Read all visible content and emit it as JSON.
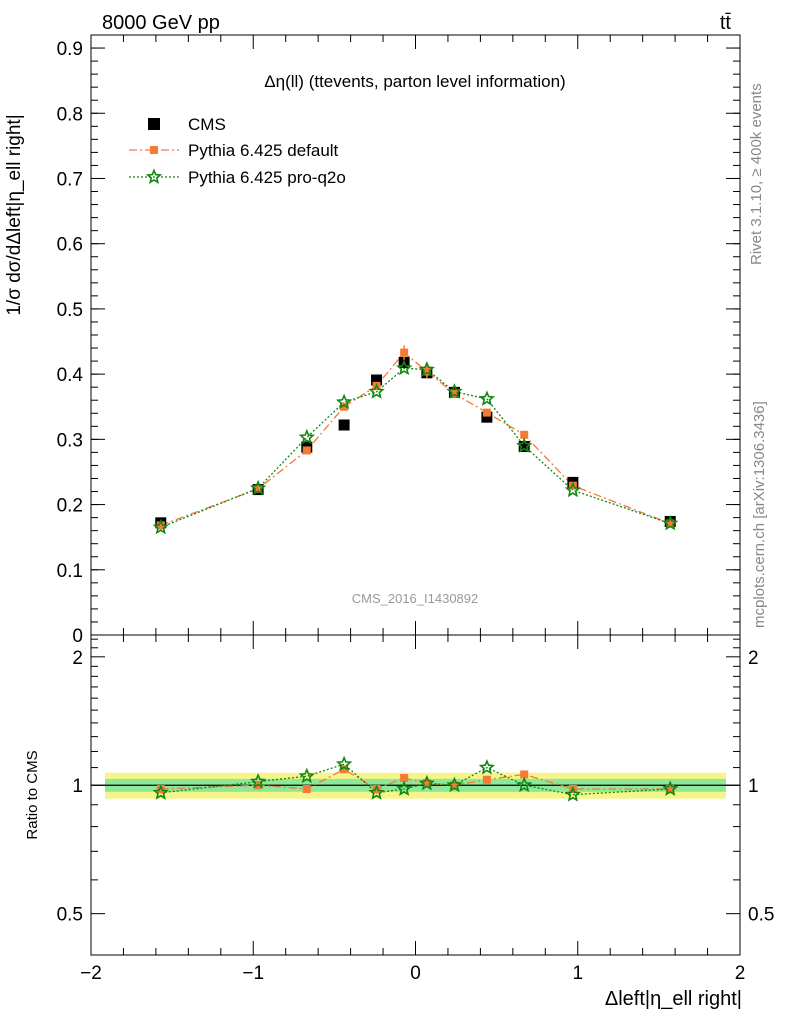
{
  "header": {
    "energy_label": "8000 GeV pp",
    "process_label": "tt̄"
  },
  "side_labels": {
    "rivet": "Rivet 3.1.10, ≥ 400k events",
    "mcplots": "mcplots.cern.ch [arXiv:1306.3436]"
  },
  "chart_data": [
    {
      "type": "scatter",
      "panel": "main",
      "title": "Δη(ll) (ttevents, parton level information)",
      "watermark": "CMS_2016_I1430892",
      "ylabel": "1/σ dσ/dΔleft|η_ell right|",
      "xlim": [
        -2,
        2
      ],
      "ylim": [
        0,
        0.92
      ],
      "yticks": [
        0,
        0.1,
        0.2,
        0.3,
        0.4,
        0.5,
        0.6,
        0.7,
        0.8,
        0.9
      ],
      "legend_position": "top-left",
      "x": [
        -1.57,
        -0.97,
        -0.67,
        -0.44,
        -0.24,
        -0.07,
        0.07,
        0.24,
        0.44,
        0.67,
        0.97,
        1.57
      ],
      "series": [
        {
          "name": "CMS",
          "color": "#000000",
          "marker": "square",
          "values": [
            0.172,
            0.223,
            0.288,
            0.322,
            0.391,
            0.418,
            0.402,
            0.372,
            0.334,
            0.289,
            0.234,
            0.174
          ]
        },
        {
          "name": "Pythia 6.425 default",
          "color": "#f47a35",
          "marker": "square-small",
          "line": "dashdot",
          "values": [
            0.168,
            0.224,
            0.283,
            0.35,
            0.382,
            0.433,
            0.404,
            0.37,
            0.341,
            0.307,
            0.229,
            0.171
          ],
          "errors": [
            0.003,
            0.004,
            0.005,
            0.006,
            0.006,
            0.011,
            0.01,
            0.005,
            0.006,
            0.006,
            0.004,
            0.003
          ]
        },
        {
          "name": "Pythia 6.425 pro-q2o",
          "color": "#118811",
          "marker": "star",
          "line": "dotted",
          "values": [
            0.165,
            0.225,
            0.303,
            0.357,
            0.373,
            0.409,
            0.407,
            0.373,
            0.362,
            0.29,
            0.222,
            0.171
          ]
        }
      ]
    },
    {
      "type": "line",
      "panel": "ratio",
      "ylabel": "Ratio to CMS",
      "xlabel": "Δleft|η_ell right|",
      "xlim": [
        -2,
        2
      ],
      "ylim": [
        0.4,
        2.25
      ],
      "yticks": [
        0.5,
        1,
        2
      ],
      "xticks": [
        -2,
        -1,
        0,
        1,
        2
      ],
      "band_inner": 0.035,
      "band_outer": 0.07,
      "x": [
        -1.57,
        -0.97,
        -0.67,
        -0.44,
        -0.24,
        -0.07,
        0.07,
        0.24,
        0.44,
        0.67,
        0.97,
        1.57
      ],
      "series": [
        {
          "name": "Pythia 6.425 default",
          "color": "#f47a35",
          "values": [
            0.98,
            1.0,
            0.98,
            1.09,
            0.98,
            1.04,
            1.01,
            1.0,
            1.03,
            1.06,
            0.98,
            0.98
          ]
        },
        {
          "name": "Pythia 6.425 pro-q2o",
          "color": "#118811",
          "values": [
            0.96,
            1.02,
            1.05,
            1.12,
            0.96,
            0.98,
            1.01,
            1.0,
            1.1,
            1.0,
            0.95,
            0.98
          ]
        }
      ]
    }
  ]
}
